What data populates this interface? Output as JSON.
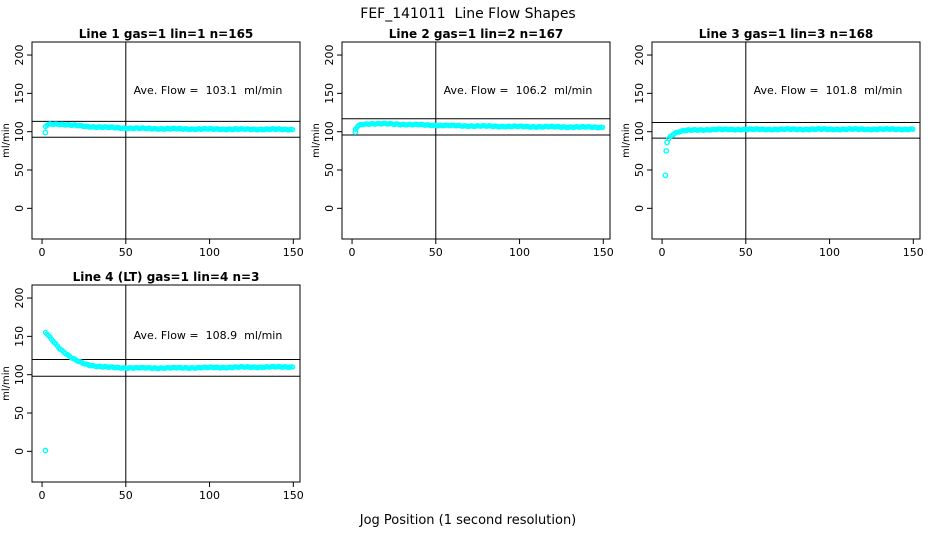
{
  "page_title": "FEF_141011  Line Flow Shapes",
  "x_axis_label": "Jog Position (1 second resolution)",
  "y_axis_label": "ml/min",
  "colors": {
    "points": "#00FFFF",
    "axis": "#000000",
    "background": "#FFFFFF"
  },
  "chart_data": [
    {
      "type": "scatter",
      "title": "Line 1 gas=1 lin=1 n=165",
      "flow_label": "Ave. Flow =  103.1  ml/min",
      "ave_flow": 103.1,
      "n": 165,
      "xlim": [
        -6,
        154
      ],
      "ylim": [
        -40,
        217
      ],
      "xticks": [
        0,
        50,
        100,
        150
      ],
      "yticks": [
        0,
        50,
        100,
        150,
        200
      ],
      "vline_x": 50,
      "hlines": [
        113.4,
        92.8
      ],
      "curve": [
        [
          2,
          106.5
        ],
        [
          3,
          108.5
        ],
        [
          4,
          109.5
        ],
        [
          6,
          110
        ],
        [
          9,
          110
        ],
        [
          12,
          109.6
        ],
        [
          16,
          108.8
        ],
        [
          20,
          108
        ],
        [
          25,
          107.2
        ],
        [
          30,
          106.5
        ],
        [
          40,
          105.5
        ],
        [
          50,
          104.7
        ],
        [
          60,
          104.2
        ],
        [
          80,
          103.7
        ],
        [
          100,
          103.4
        ],
        [
          120,
          103.2
        ],
        [
          150,
          103
        ]
      ],
      "outliers": [
        [
          2,
          99
        ]
      ]
    },
    {
      "type": "scatter",
      "title": "Line 2 gas=1 lin=2 n=167",
      "flow_label": "Ave. Flow =  106.2  ml/min",
      "ave_flow": 106.2,
      "n": 167,
      "xlim": [
        -6,
        154
      ],
      "ylim": [
        -40,
        217
      ],
      "xticks": [
        0,
        50,
        100,
        150
      ],
      "yticks": [
        0,
        50,
        100,
        150,
        200
      ],
      "vline_x": 50,
      "hlines": [
        116.8,
        95.6
      ],
      "curve": [
        [
          2,
          103
        ],
        [
          3,
          106
        ],
        [
          4,
          108
        ],
        [
          6,
          109.5
        ],
        [
          9,
          110.3
        ],
        [
          12,
          110.5
        ],
        [
          16,
          110.4
        ],
        [
          20,
          110.2
        ],
        [
          25,
          110
        ],
        [
          30,
          109.6
        ],
        [
          40,
          109
        ],
        [
          50,
          108.4
        ],
        [
          60,
          107.9
        ],
        [
          80,
          107.2
        ],
        [
          100,
          106.7
        ],
        [
          120,
          106.3
        ],
        [
          150,
          105.8
        ]
      ],
      "outliers": [
        [
          2,
          99.5
        ]
      ]
    },
    {
      "type": "scatter",
      "title": "Line 3 gas=1 lin=3 n=168",
      "flow_label": "Ave. Flow =  101.8  ml/min",
      "ave_flow": 101.8,
      "n": 168,
      "xlim": [
        -6,
        154
      ],
      "ylim": [
        -40,
        217
      ],
      "xticks": [
        0,
        50,
        100,
        150
      ],
      "yticks": [
        0,
        50,
        100,
        150,
        200
      ],
      "vline_x": 50,
      "hlines": [
        112.0,
        91.6
      ],
      "curve": [
        [
          4,
          91
        ],
        [
          5,
          94
        ],
        [
          6,
          96
        ],
        [
          8,
          98.5
        ],
        [
          10,
          100
        ],
        [
          14,
          101.5
        ],
        [
          20,
          102.3
        ],
        [
          30,
          102.8
        ],
        [
          50,
          103
        ],
        [
          100,
          103.2
        ],
        [
          150,
          103.2
        ]
      ],
      "outliers": [
        [
          2,
          43
        ],
        [
          2.5,
          75
        ],
        [
          3,
          86
        ]
      ]
    },
    {
      "type": "scatter",
      "title": "Line 4 (LT) gas=1 lin=4 n=3",
      "flow_label": "Ave. Flow =  108.9  ml/min",
      "ave_flow": 108.9,
      "n": 3,
      "xlim": [
        -6,
        154
      ],
      "ylim": [
        -40,
        217
      ],
      "xticks": [
        0,
        50,
        100,
        150
      ],
      "yticks": [
        0,
        50,
        100,
        150,
        200
      ],
      "vline_x": 50,
      "hlines": [
        119.8,
        98.0
      ],
      "curve": [
        [
          2,
          155
        ],
        [
          3,
          153
        ],
        [
          4,
          150.5
        ],
        [
          5,
          148
        ],
        [
          6,
          145.5
        ],
        [
          7,
          143
        ],
        [
          8,
          140.5
        ],
        [
          9,
          138
        ],
        [
          10,
          135.5
        ],
        [
          12,
          131.5
        ],
        [
          14,
          128
        ],
        [
          16,
          124.5
        ],
        [
          18,
          121.5
        ],
        [
          20,
          119
        ],
        [
          22,
          117
        ],
        [
          25,
          114.5
        ],
        [
          28,
          112.8
        ],
        [
          32,
          111.3
        ],
        [
          36,
          110.3
        ],
        [
          40,
          109.7
        ],
        [
          45,
          109.2
        ],
        [
          50,
          109
        ],
        [
          60,
          108.8
        ],
        [
          70,
          108.8
        ],
        [
          85,
          109
        ],
        [
          100,
          109.3
        ],
        [
          120,
          109.8
        ],
        [
          150,
          110.2
        ]
      ],
      "outliers": [
        [
          2,
          1
        ]
      ]
    }
  ]
}
